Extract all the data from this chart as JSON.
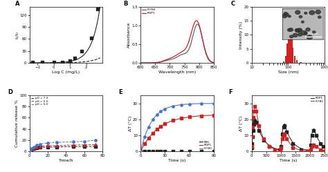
{
  "A": {
    "label": "A",
    "xlabel": "Log C (mg/L)",
    "ylabel": "I₁/I₀",
    "xlim": [
      -1.5,
      3.0
    ],
    "ylim": [
      0,
      140
    ],
    "yticks": [
      0,
      30,
      60,
      90,
      120
    ],
    "xticks": [
      -1,
      0,
      1,
      2
    ],
    "scatter_x": [
      -1.3,
      -0.7,
      0.0,
      0.5,
      1.0,
      1.3,
      1.7,
      2.3,
      2.7
    ],
    "scatter_y": [
      1.0,
      1.2,
      1.8,
      2.5,
      5,
      12,
      30,
      62,
      135
    ],
    "solid_a": 0.55,
    "solid_b": 1.95,
    "dash_a": 0.15,
    "dash_b": 1.55,
    "line_color": "#222222"
  },
  "B": {
    "label": "B",
    "xlabel": "Wavelength (nm)",
    "ylabel": "Absorbance",
    "xlim": [
      600,
      850
    ],
    "ylim": [
      0.0,
      1.5
    ],
    "yticks": [
      0.0,
      0.5,
      1.0,
      1.5
    ],
    "xticks": [
      600,
      650,
      700,
      750,
      800,
      850
    ],
    "IR780_color": "#666666",
    "RDP1_color": "#cc2222",
    "legend": [
      "IR780",
      "RDP1"
    ]
  },
  "C": {
    "label": "C",
    "xlabel": "Size (nm)",
    "ylabel": "Intensity (%)",
    "xlim_log": [
      10,
      1000
    ],
    "ylim": [
      0,
      20
    ],
    "yticks": [
      0,
      5,
      10,
      15,
      20
    ],
    "xticks_log": [
      10,
      100,
      1000
    ],
    "bar_centers": [
      75,
      85,
      95,
      105,
      115,
      125,
      135,
      150,
      175,
      220
    ],
    "bar_heights": [
      0.5,
      2.5,
      7.0,
      16.0,
      13.5,
      9.5,
      5.5,
      2.5,
      1.0,
      0.3
    ],
    "bar_color": "#cc2222"
  },
  "D": {
    "label": "D",
    "xlabel": "Time/h",
    "ylabel": "Cumulative release %",
    "xlim": [
      0,
      80
    ],
    "ylim": [
      0,
      100
    ],
    "yticks": [
      0,
      20,
      40,
      60,
      80,
      100
    ],
    "xticks": [
      0,
      20,
      40,
      60,
      80
    ],
    "t_pts": [
      0,
      2,
      5,
      8,
      12,
      20,
      30,
      48,
      60,
      72
    ],
    "y74": [
      0,
      3,
      5,
      6,
      7,
      7.5,
      8,
      8.5,
      8.5,
      9
    ],
    "y55": [
      0,
      4,
      6,
      7.5,
      9,
      10,
      10.5,
      11,
      11.5,
      12
    ],
    "y50": [
      0,
      5,
      8,
      11,
      13,
      15,
      16,
      17,
      18,
      20
    ],
    "pH74_color": "#222222",
    "pH55_color": "#cc2222",
    "pH50_color": "#4477cc",
    "legend": [
      "pH = 7.4",
      "pH = 5.5",
      "pH = 5.0"
    ]
  },
  "E": {
    "label": "E",
    "xlabel": "Time (s)",
    "ylabel": "ΔT (°C)",
    "xlim": [
      0,
      90
    ],
    "ylim": [
      0,
      35
    ],
    "yticks": [
      0,
      10,
      20,
      30
    ],
    "xticks": [
      0,
      30,
      60,
      90
    ],
    "t_pts": [
      0,
      5,
      10,
      15,
      20,
      25,
      30,
      40,
      50,
      60,
      75,
      90
    ],
    "pbs_y": [
      0,
      0.2,
      0.3,
      0.3,
      0.3,
      0.3,
      0.3,
      0.3,
      0.3,
      0.3,
      0.3,
      0.3
    ],
    "rdp1_tau": 22,
    "rdp1_max": 23,
    "ir780_tau": 14,
    "ir780_max": 30,
    "PBS_color": "#222222",
    "RDP1_color": "#cc2222",
    "IR780_color": "#4477cc",
    "legend": [
      "PBS",
      "RDP1",
      "IR780"
    ]
  },
  "F": {
    "label": "F",
    "xlabel": "Time (s)",
    "ylabel": "ΔT (°C)",
    "xlim": [
      0,
      2500
    ],
    "ylim": [
      0,
      35
    ],
    "yticks": [
      0,
      10,
      20,
      30
    ],
    "xticks": [
      0,
      500,
      1000,
      1500,
      2000,
      2500
    ],
    "cycles_rdp1": [
      [
        0,
        130,
        22,
        50,
        280
      ],
      [
        1000,
        1130,
        18,
        50,
        250
      ],
      [
        2000,
        2130,
        15,
        50,
        230
      ]
    ],
    "cycles_ir780": [
      [
        0,
        130,
        30,
        40,
        220
      ],
      [
        1000,
        1130,
        12,
        40,
        200
      ],
      [
        2000,
        2130,
        5,
        40,
        180
      ]
    ],
    "RDP1_color": "#222222",
    "IR780_color": "#cc2222",
    "legend": [
      "RDP1",
      "IR780"
    ]
  }
}
